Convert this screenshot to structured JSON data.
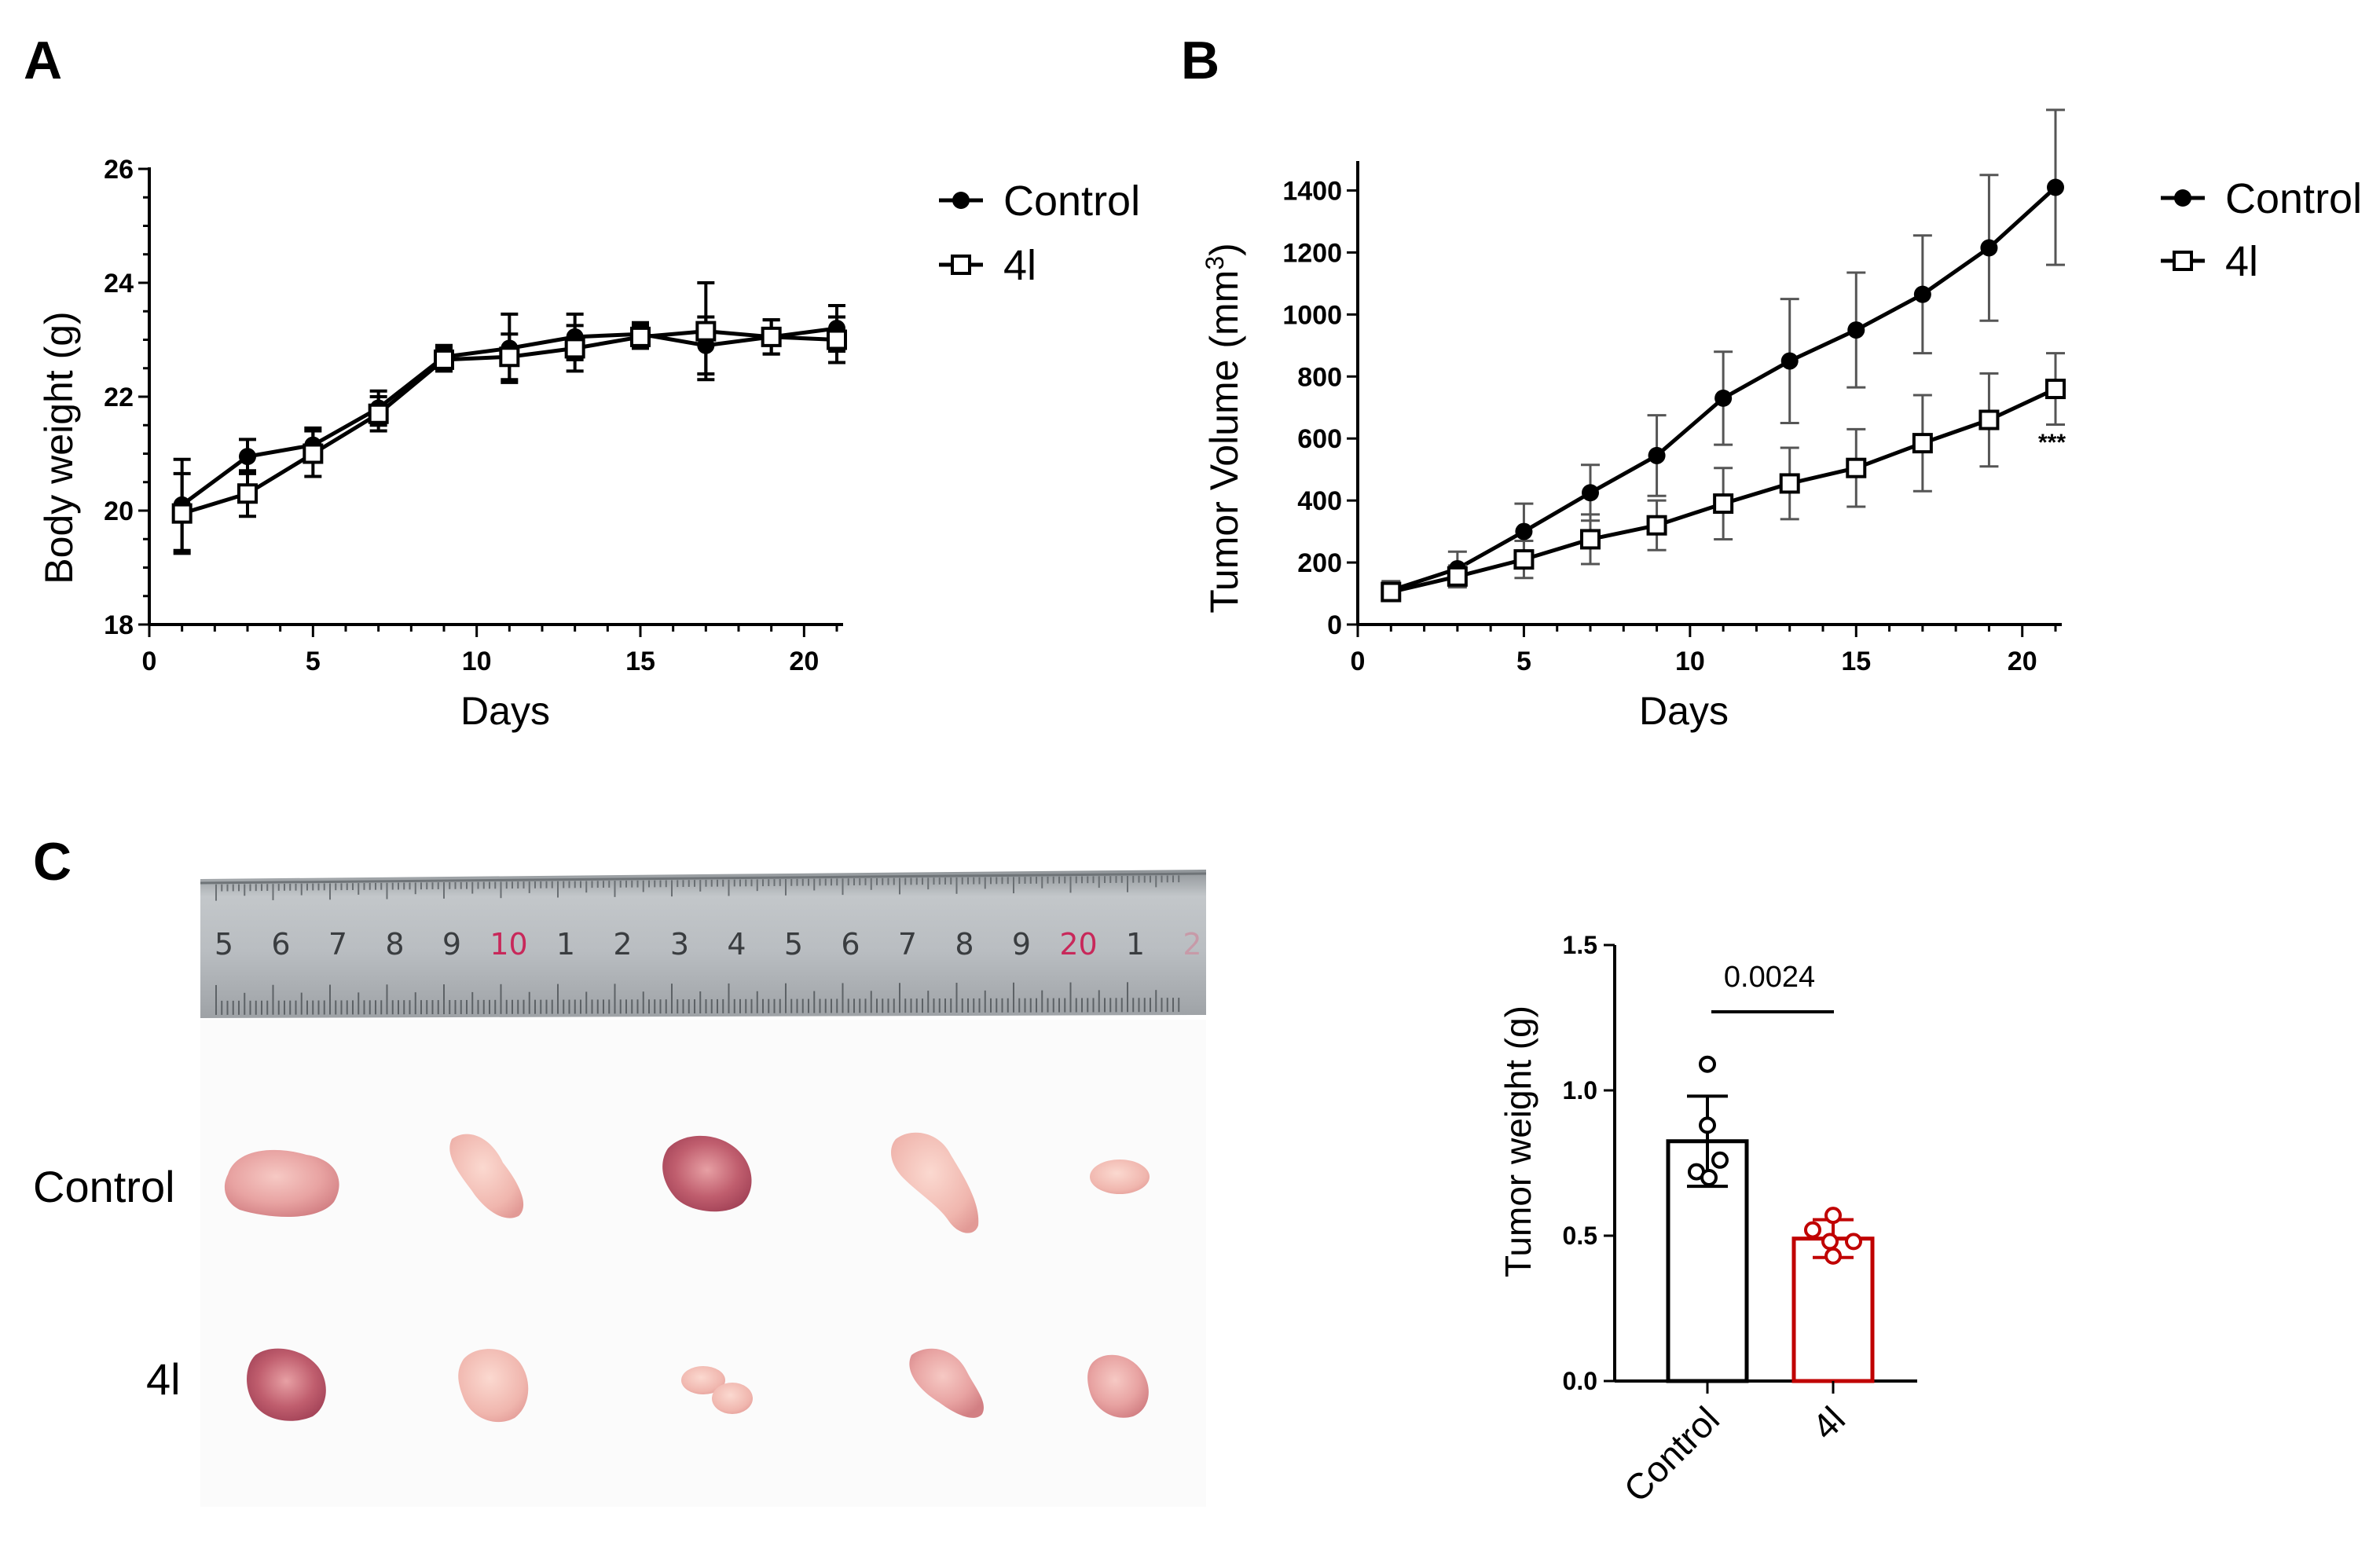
{
  "panels": {
    "a": {
      "letter": "A"
    },
    "b": {
      "letter": "B"
    },
    "c": {
      "letter": "C"
    }
  },
  "chart_data": [
    {
      "id": "body_weight",
      "type": "line",
      "title": "",
      "xlabel": "Days",
      "ylabel": "Body weight (g)",
      "xlim": [
        0,
        21
      ],
      "ylim": [
        18,
        26
      ],
      "xticks": [
        0,
        5,
        10,
        15,
        20
      ],
      "yticks": [
        18,
        20,
        22,
        24,
        26
      ],
      "grid": false,
      "legend": "top-right",
      "x": [
        1,
        3,
        5,
        7,
        9,
        11,
        13,
        15,
        17,
        19,
        21
      ],
      "series": [
        {
          "name": "Control",
          "marker": "filled-circle",
          "values": [
            20.1,
            20.95,
            21.15,
            21.8,
            22.7,
            22.85,
            23.05,
            23.1,
            22.9,
            23.05,
            23.2
          ],
          "errors": [
            0.8,
            0.3,
            0.3,
            0.3,
            0.2,
            0.6,
            0.4,
            0.2,
            0.5,
            0.3,
            0.4
          ]
        },
        {
          "name": "4l",
          "marker": "open-square",
          "values": [
            19.95,
            20.3,
            21.0,
            21.7,
            22.65,
            22.7,
            22.85,
            23.05,
            23.15,
            23.05,
            23.0
          ],
          "errors": [
            0.7,
            0.4,
            0.4,
            0.3,
            0.2,
            0.4,
            0.4,
            0.2,
            0.85,
            0.3,
            0.4
          ]
        }
      ]
    },
    {
      "id": "tumor_volume",
      "type": "line",
      "title": "",
      "xlabel": "Days",
      "ylabel": "Tumor Volume (mm3)",
      "xlim": [
        0,
        21
      ],
      "ylim": [
        0,
        1500
      ],
      "xticks": [
        0,
        5,
        10,
        15,
        20
      ],
      "yticks": [
        0,
        200,
        400,
        600,
        800,
        1000,
        1200,
        1400
      ],
      "grid": false,
      "legend": "top-right",
      "annotation": "***",
      "x": [
        1,
        3,
        5,
        7,
        9,
        11,
        13,
        15,
        17,
        19,
        21
      ],
      "series": [
        {
          "name": "Control",
          "marker": "filled-circle",
          "values": [
            110,
            180,
            300,
            425,
            545,
            730,
            850,
            950,
            1065,
            1215,
            1410
          ],
          "errors": [
            30,
            55,
            90,
            90,
            130,
            150,
            200,
            185,
            190,
            235,
            250
          ]
        },
        {
          "name": "4l",
          "marker": "open-square",
          "values": [
            105,
            155,
            210,
            275,
            320,
            390,
            455,
            505,
            585,
            660,
            760
          ],
          "errors": [
            20,
            35,
            60,
            80,
            80,
            115,
            115,
            125,
            155,
            150,
            115
          ]
        }
      ]
    },
    {
      "id": "tumor_weight",
      "type": "bar",
      "title": "",
      "xlabel": "",
      "ylabel": "Tumor weight (g)",
      "ylim": [
        0,
        1.5
      ],
      "yticks": [
        "0.0",
        "0.5",
        "1.0",
        "1.5"
      ],
      "categories": [
        "Control",
        "4l"
      ],
      "values": [
        0.825,
        0.49
      ],
      "errors": [
        0.155,
        0.065
      ],
      "points": [
        [
          1.09,
          0.88,
          0.76,
          0.72,
          0.7
        ],
        [
          0.57,
          0.52,
          0.48,
          0.48,
          0.43
        ]
      ],
      "colors": [
        "#000000",
        "#c00000"
      ],
      "significance": {
        "label": "0.0024"
      }
    }
  ],
  "photo": {
    "row_labels": [
      "Control",
      "4l"
    ],
    "ruler_numbers": [
      "5",
      "6",
      "7",
      "8",
      "9",
      "10",
      "1",
      "2",
      "3",
      "4",
      "5",
      "6",
      "7",
      "8",
      "9",
      "20",
      "1",
      "2"
    ],
    "ruler_red_numbers": [
      "10",
      "20"
    ]
  },
  "colors": {
    "axis": "#000000",
    "red": "#c00000",
    "ruler_steel": "#b8bcc0",
    "ruler_red": "#c8285a",
    "tissue": "#e9a7a6"
  }
}
